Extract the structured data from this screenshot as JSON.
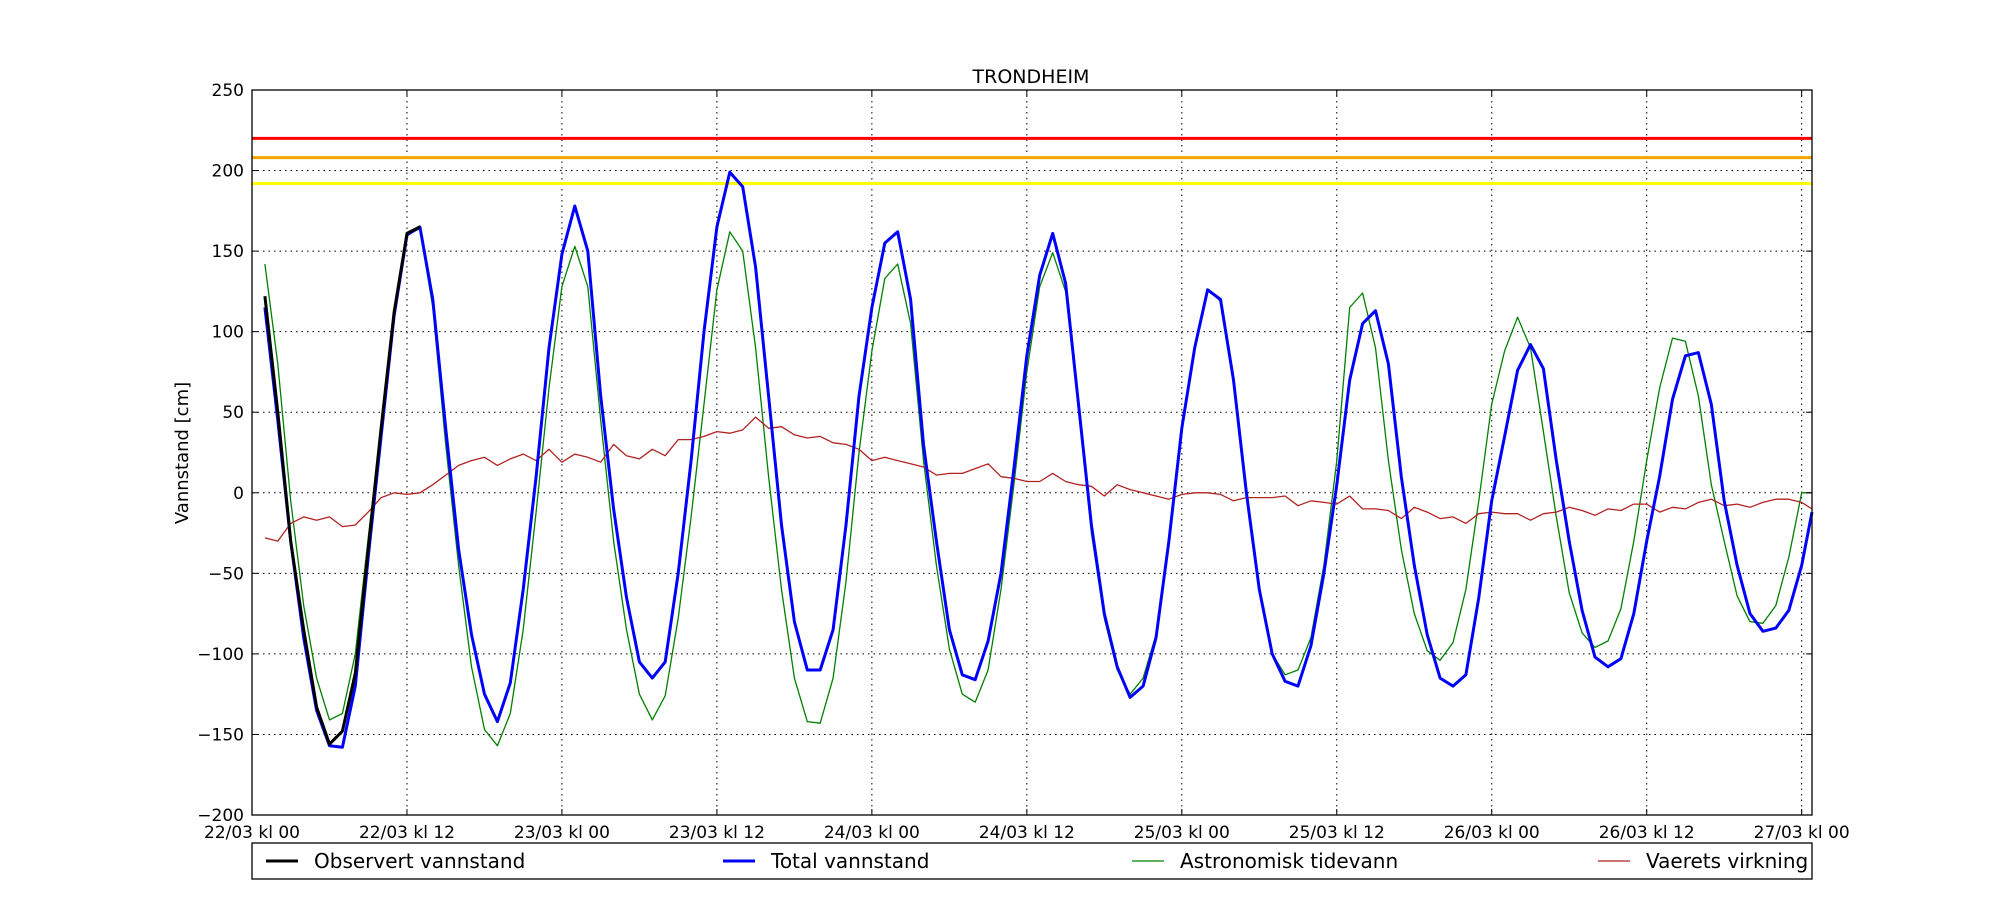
{
  "chart_data": {
    "type": "line",
    "title": "TRONDHEIM",
    "ylabel": "Vannstand [cm]",
    "xlabel": "",
    "ylim": [
      -200,
      250
    ],
    "yticks": [
      -200,
      -150,
      -100,
      -50,
      0,
      50,
      100,
      150,
      200,
      250
    ],
    "ytick_labels": [
      "−200",
      "−150",
      "−100",
      "−50",
      "0",
      "50",
      "100",
      "150",
      "200",
      "250"
    ],
    "xlim_hours": [
      0,
      120.8
    ],
    "xticks": [
      {
        "hour": 0,
        "label": "22/03 kl 00"
      },
      {
        "hour": 12,
        "label": "22/03 kl 12"
      },
      {
        "hour": 24,
        "label": "23/03 kl 00"
      },
      {
        "hour": 36,
        "label": "23/03 kl 12"
      },
      {
        "hour": 48,
        "label": "24/03 kl 00"
      },
      {
        "hour": 60,
        "label": "24/03 kl 12"
      },
      {
        "hour": 72,
        "label": "25/03 kl 00"
      },
      {
        "hour": 84,
        "label": "25/03 kl 12"
      },
      {
        "hour": 96,
        "label": "26/03 kl 00"
      },
      {
        "hour": 108,
        "label": "26/03 kl 12"
      },
      {
        "hour": 120,
        "label": "27/03 kl 00"
      }
    ],
    "grid": true,
    "legend_position": "bottom",
    "thresholds": [
      {
        "value": 220,
        "color": "#ff0000"
      },
      {
        "value": 208,
        "color": "#ffa500"
      },
      {
        "value": 192,
        "color": "#ffff00"
      }
    ],
    "series": [
      {
        "name": "Observert vannstand",
        "color": "#000000",
        "width": 3,
        "x": [
          1,
          2,
          3,
          4,
          5,
          6,
          7,
          8,
          9,
          10,
          11,
          12,
          13
        ],
        "y": [
          122,
          50,
          -30,
          -85,
          -133,
          -156,
          -148,
          -112,
          -35,
          40,
          112,
          161,
          165
        ]
      },
      {
        "name": "Total vannstand",
        "color": "#0000ff",
        "width": 3,
        "x": [
          1,
          2,
          3,
          4,
          5,
          6,
          7,
          8,
          9,
          10,
          11,
          12,
          13,
          14,
          15,
          16,
          17,
          18,
          19,
          20,
          21,
          22,
          23,
          24,
          25,
          26,
          27,
          28,
          29,
          30,
          31,
          32,
          33,
          34,
          35,
          36,
          37,
          38,
          39,
          40,
          41,
          42,
          43,
          44,
          45,
          46,
          47,
          48,
          49,
          50,
          51,
          52,
          53,
          54,
          55,
          56,
          57,
          58,
          59,
          60,
          61,
          62,
          63,
          64,
          65,
          66,
          67,
          68,
          69,
          70,
          71,
          72,
          73,
          74,
          75,
          76,
          77,
          78,
          79,
          80,
          81,
          82,
          83,
          84,
          85,
          86,
          87,
          88,
          89,
          90,
          91,
          92,
          93,
          94,
          95,
          96,
          97,
          98,
          99,
          100,
          101,
          102,
          103,
          104,
          105,
          106,
          107,
          108,
          109,
          110,
          111,
          112,
          113,
          114,
          115,
          116,
          117,
          118,
          119,
          120,
          120.8
        ],
        "y": [
          115,
          45,
          -30,
          -90,
          -135,
          -157,
          -158,
          -120,
          -40,
          35,
          110,
          160,
          165,
          120,
          40,
          -35,
          -88,
          -125,
          -142,
          -118,
          -60,
          10,
          90,
          148,
          178,
          150,
          60,
          -10,
          -65,
          -105,
          -115,
          -105,
          -50,
          20,
          100,
          165,
          199,
          190,
          140,
          60,
          -20,
          -80,
          -110,
          -110,
          -85,
          -20,
          60,
          115,
          155,
          162,
          120,
          30,
          -30,
          -85,
          -113,
          -116,
          -92,
          -50,
          15,
          85,
          135,
          161,
          130,
          55,
          -20,
          -75,
          -108,
          -127,
          -120,
          -90,
          -30,
          40,
          90,
          126,
          120,
          70,
          0,
          -60,
          -100,
          -117,
          -120,
          -95,
          -50,
          5,
          70,
          105,
          113,
          80,
          10,
          -45,
          -88,
          -115,
          -120,
          -113,
          -65,
          -5,
          35,
          76,
          92,
          77,
          20,
          -30,
          -73,
          -102,
          -108,
          -103,
          -75,
          -30,
          10,
          58,
          85,
          87,
          55,
          -5,
          -45,
          -75,
          -86,
          -84,
          -73,
          -45,
          -12
        ],
        "extra_x": [],
        "extra_y": []
      },
      {
        "name": "Astronomisk tidevann",
        "color": "#008000",
        "width": 1.3,
        "x": [
          1,
          2,
          3,
          4,
          5,
          6,
          7,
          8,
          9,
          10,
          11,
          12,
          13,
          14,
          15,
          16,
          17,
          18,
          19,
          20,
          21,
          22,
          23,
          24,
          25,
          26,
          27,
          28,
          29,
          30,
          31,
          32,
          33,
          34,
          35,
          36,
          37,
          38,
          39,
          40,
          41,
          42,
          43,
          44,
          45,
          46,
          47,
          48,
          49,
          50,
          51,
          52,
          53,
          54,
          55,
          56,
          57,
          58,
          59,
          60,
          61,
          62,
          63,
          64,
          65,
          66,
          67,
          68,
          69,
          70,
          71,
          72,
          73,
          74,
          75,
          76,
          77,
          78,
          79,
          80,
          81,
          82,
          83,
          84,
          85,
          86,
          87,
          88,
          89,
          90,
          91,
          92,
          93,
          94,
          95,
          96,
          97,
          98,
          99,
          100,
          101,
          102,
          103,
          104,
          105,
          106,
          107,
          108,
          109,
          110,
          111,
          112,
          113,
          114,
          115,
          116,
          117,
          118,
          119,
          120,
          120.8
        ],
        "y": [
          142,
          80,
          -5,
          -70,
          -115,
          -141,
          -137,
          -100,
          -28,
          40,
          112,
          160,
          164,
          115,
          30,
          -45,
          -108,
          -147,
          -157,
          -137,
          -85,
          -12,
          65,
          128,
          153,
          128,
          45,
          -30,
          -85,
          -125,
          -141,
          -126,
          -78,
          -15,
          55,
          126,
          162,
          150,
          90,
          10,
          -60,
          -115,
          -142,
          -143,
          -115,
          -55,
          25,
          88,
          133,
          142,
          105,
          20,
          -45,
          -97,
          -125,
          -130,
          -110,
          -60,
          5,
          75,
          128,
          149,
          125,
          55,
          -25,
          -78,
          -110,
          -125,
          -115,
          -88,
          -30,
          40,
          90,
          126,
          119,
          68,
          0,
          -60,
          -100,
          -113,
          -110,
          -90,
          -45,
          20,
          115,
          124,
          90,
          20,
          -35,
          -75,
          -98,
          -104,
          -93,
          -60,
          -5,
          55,
          88,
          109,
          90,
          38,
          -15,
          -62,
          -87,
          -96,
          -92,
          -72,
          -30,
          20,
          65,
          96,
          94,
          60,
          5,
          -30,
          -64,
          -80,
          -81,
          -70,
          -40,
          0,
          0
        ],
        "extra_x": [],
        "extra_y": []
      },
      {
        "name": "Vaerets virkning",
        "color": "#b22222",
        "width": 1.3,
        "x": [
          1,
          2,
          3,
          4,
          5,
          6,
          7,
          8,
          9,
          10,
          11,
          12,
          13,
          14,
          15,
          16,
          17,
          18,
          19,
          20,
          21,
          22,
          23,
          24,
          25,
          26,
          27,
          28,
          29,
          30,
          31,
          32,
          33,
          34,
          35,
          36,
          37,
          38,
          39,
          40,
          41,
          42,
          43,
          44,
          45,
          46,
          47,
          48,
          49,
          50,
          51,
          52,
          53,
          54,
          55,
          56,
          57,
          58,
          59,
          60,
          61,
          62,
          63,
          64,
          65,
          66,
          67,
          68,
          69,
          70,
          71,
          72,
          73,
          74,
          75,
          76,
          77,
          78,
          79,
          80,
          81,
          82,
          83,
          84,
          85,
          86,
          87,
          88,
          89,
          90,
          91,
          92,
          93,
          94,
          95,
          96,
          97,
          98,
          99,
          100,
          101,
          102,
          103,
          104,
          105,
          106,
          107,
          108,
          109,
          110,
          111,
          112,
          113,
          114,
          115,
          116,
          117,
          118,
          119,
          120,
          120.8
        ],
        "y": [
          -28,
          -30,
          -19,
          -15,
          -17,
          -15,
          -21,
          -20,
          -12,
          -3,
          0,
          -1,
          0,
          5,
          11,
          17,
          20,
          22,
          17,
          21,
          24,
          20,
          27,
          19,
          24,
          22,
          19,
          30,
          23,
          21,
          27,
          23,
          33,
          33,
          35,
          38,
          37,
          39,
          47,
          40,
          41,
          36,
          34,
          35,
          31,
          30,
          27,
          20,
          22,
          20,
          18,
          16,
          11,
          12,
          12,
          15,
          18,
          10,
          9,
          7,
          7,
          12,
          7,
          5,
          4,
          -2,
          5,
          2,
          0,
          -2,
          -4,
          -1,
          0,
          0,
          -1,
          -5,
          -3,
          -3,
          -3,
          -2,
          -8,
          -5,
          -6,
          -7,
          -2,
          -10,
          -10,
          -11,
          -16,
          -9,
          -12,
          -16,
          -15,
          -19,
          -13,
          -12,
          -13,
          -13,
          -17,
          -13,
          -12,
          -9,
          -11,
          -14,
          -10,
          -11,
          -7,
          -7,
          -12,
          -9,
          -10,
          -6,
          -4,
          -8,
          -7,
          -9,
          -6,
          -4,
          -4,
          -6,
          -10
        ],
        "extra_x": [],
        "extra_y": []
      }
    ]
  },
  "legend": {
    "items": [
      {
        "label": "Observert vannstand",
        "color": "#000000",
        "width": 3
      },
      {
        "label": "Total vannstand",
        "color": "#0000ff",
        "width": 3
      },
      {
        "label": "Astronomisk tidevann",
        "color": "#008000",
        "width": 1.3
      },
      {
        "label": "Vaerets virkning",
        "color": "#b22222",
        "width": 1.3
      }
    ]
  }
}
